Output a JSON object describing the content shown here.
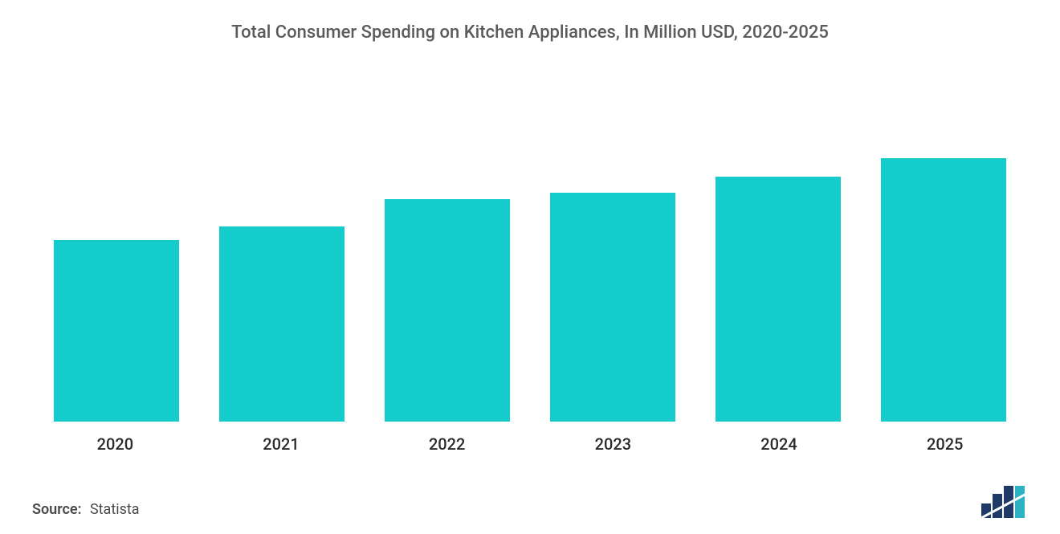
{
  "chart": {
    "type": "bar",
    "title": "Total Consumer Spending on Kitchen Appliances, In Million USD, 2020-2025",
    "title_fontsize": 22,
    "title_color": "#5b5b5b",
    "categories": [
      "2020",
      "2021",
      "2022",
      "2023",
      "2024",
      "2025"
    ],
    "values": [
      200,
      215,
      245,
      252,
      270,
      290
    ],
    "ylim": [
      0,
      400
    ],
    "bar_color": "#14cccc",
    "bar_width_ratio": 0.76,
    "background_color": "#ffffff",
    "category_label_fontsize": 20,
    "category_label_color": "#2b2b2b",
    "grid": false
  },
  "source": {
    "label": "Source:",
    "value": "Statista",
    "fontsize": 18,
    "color": "#4a4a4a"
  },
  "logo": {
    "name": "mordor-intelligence-logo",
    "bars": [
      {
        "x": 0,
        "h": 18,
        "fill": "#1f3a66"
      },
      {
        "x": 14,
        "h": 30,
        "fill": "#1f3a66"
      },
      {
        "x": 28,
        "h": 40,
        "fill": "#1f3a66"
      },
      {
        "x": 42,
        "h": 40,
        "fill": "#2db2c4"
      }
    ],
    "accent_line": {
      "x1": 0,
      "y1": 40,
      "x2": 56,
      "y2": 10,
      "stroke": "#ffffff",
      "width": 3
    }
  }
}
